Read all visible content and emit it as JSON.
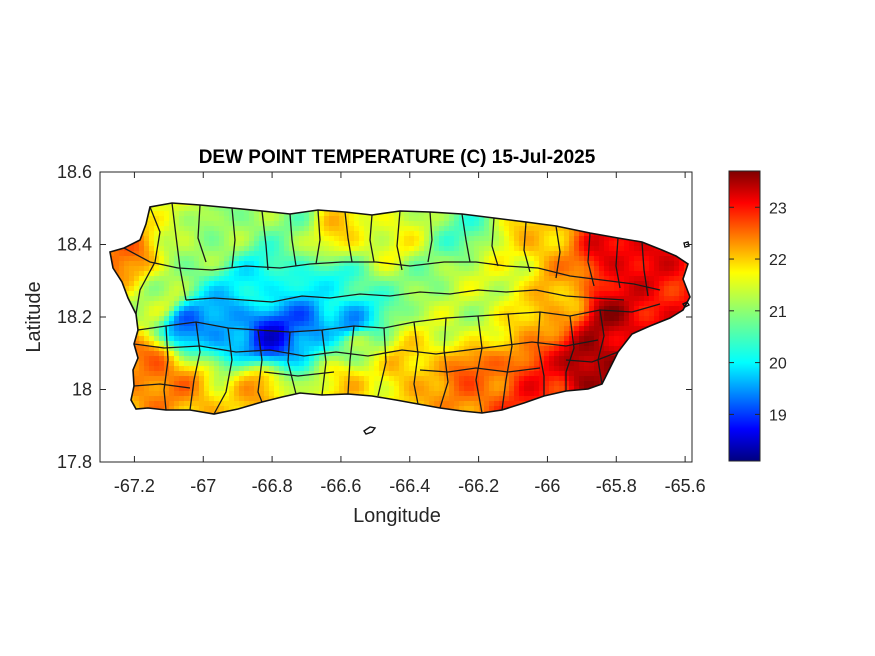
{
  "chart_data": {
    "type": "heatmap",
    "title": "DEW POINT TEMPERATURE (C) 15-Jul-2025",
    "xlabel": "Longitude",
    "ylabel": "Latitude",
    "xlim": [
      -67.3,
      -65.58
    ],
    "ylim": [
      17.8,
      18.6
    ],
    "x_ticks": [
      "-67.2",
      "-67",
      "-66.8",
      "-66.6",
      "-66.4",
      "-66.2",
      "-66",
      "-65.8",
      "-65.6"
    ],
    "x_tick_values": [
      -67.2,
      -67.0,
      -66.8,
      -66.6,
      -66.4,
      -66.2,
      -66.0,
      -65.8,
      -65.6
    ],
    "y_ticks": [
      "18.6",
      "18.4",
      "18.2",
      "18",
      "17.8"
    ],
    "y_tick_values": [
      18.6,
      18.4,
      18.2,
      18.0,
      17.8
    ],
    "colorbar": {
      "colormap": "jet",
      "range": [
        18.1,
        23.7
      ],
      "ticks": [
        "19",
        "20",
        "21",
        "22",
        "23"
      ],
      "tick_values": [
        19,
        20,
        21,
        22,
        23
      ]
    },
    "field_anchors": [
      {
        "lon": -67.22,
        "lat": 18.36,
        "value": 22.3
      },
      {
        "lon": -67.12,
        "lat": 18.25,
        "value": 21.2
      },
      {
        "lon": -67.05,
        "lat": 18.18,
        "value": 19.5
      },
      {
        "lon": -66.93,
        "lat": 18.17,
        "value": 19.6
      },
      {
        "lon": -66.8,
        "lat": 18.15,
        "value": 18.8
      },
      {
        "lon": -66.7,
        "lat": 18.18,
        "value": 19.4
      },
      {
        "lon": -66.58,
        "lat": 18.19,
        "value": 19.6
      },
      {
        "lon": -66.82,
        "lat": 18.28,
        "value": 20.2
      },
      {
        "lon": -66.62,
        "lat": 18.28,
        "value": 20.4
      },
      {
        "lon": -66.95,
        "lat": 18.44,
        "value": 21.0
      },
      {
        "lon": -66.75,
        "lat": 18.46,
        "value": 21.0
      },
      {
        "lon": -66.45,
        "lat": 18.43,
        "value": 21.5
      },
      {
        "lon": -66.25,
        "lat": 18.44,
        "value": 20.7
      },
      {
        "lon": -66.35,
        "lat": 18.3,
        "value": 21.0
      },
      {
        "lon": -66.2,
        "lat": 18.2,
        "value": 21.3
      },
      {
        "lon": -66.4,
        "lat": 18.05,
        "value": 22.0
      },
      {
        "lon": -66.2,
        "lat": 18.02,
        "value": 22.5
      },
      {
        "lon": -66.02,
        "lat": 18.02,
        "value": 22.8
      },
      {
        "lon": -65.87,
        "lat": 18.06,
        "value": 23.6
      },
      {
        "lon": -65.82,
        "lat": 18.2,
        "value": 23.4
      },
      {
        "lon": -65.75,
        "lat": 18.3,
        "value": 23.0
      },
      {
        "lon": -65.8,
        "lat": 18.38,
        "value": 23.2
      },
      {
        "lon": -66.0,
        "lat": 18.4,
        "value": 22.0
      },
      {
        "lon": -65.95,
        "lat": 18.25,
        "value": 22.0
      },
      {
        "lon": -67.15,
        "lat": 18.07,
        "value": 22.5
      },
      {
        "lon": -67.05,
        "lat": 17.99,
        "value": 22.2
      },
      {
        "lon": -66.85,
        "lat": 18.0,
        "value": 22.0
      },
      {
        "lon": -66.6,
        "lat": 18.02,
        "value": 21.8
      },
      {
        "lon": -67.05,
        "lat": 18.47,
        "value": 21.3
      },
      {
        "lon": -66.6,
        "lat": 18.44,
        "value": 21.8
      },
      {
        "lon": -66.1,
        "lat": 18.3,
        "value": 21.5
      },
      {
        "lon": -66.55,
        "lat": 18.12,
        "value": 21.2
      }
    ]
  }
}
